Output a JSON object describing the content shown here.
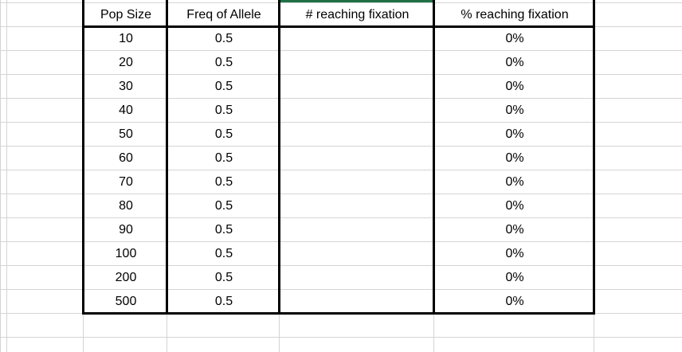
{
  "headers": [
    "Pop Size",
    "Freq of Allele",
    "# reaching fixation",
    "% reaching fixation"
  ],
  "rows": [
    [
      "10",
      "0.5",
      "",
      "0%"
    ],
    [
      "20",
      "0.5",
      "",
      "0%"
    ],
    [
      "30",
      "0.5",
      "",
      "0%"
    ],
    [
      "40",
      "0.5",
      "",
      "0%"
    ],
    [
      "50",
      "0.5",
      "",
      "0%"
    ],
    [
      "60",
      "0.5",
      "",
      "0%"
    ],
    [
      "70",
      "0.5",
      "",
      "0%"
    ],
    [
      "80",
      "0.5",
      "",
      "0%"
    ],
    [
      "90",
      "0.5",
      "",
      "0%"
    ],
    [
      "100",
      "0.5",
      "",
      "0%"
    ],
    [
      "200",
      "0.5",
      "",
      "0%"
    ],
    [
      "500",
      "0.5",
      "",
      "0%"
    ]
  ],
  "colors": {
    "gridline": "#d4d4d4",
    "border": "#000000",
    "selection_accent": "#1e7145"
  }
}
